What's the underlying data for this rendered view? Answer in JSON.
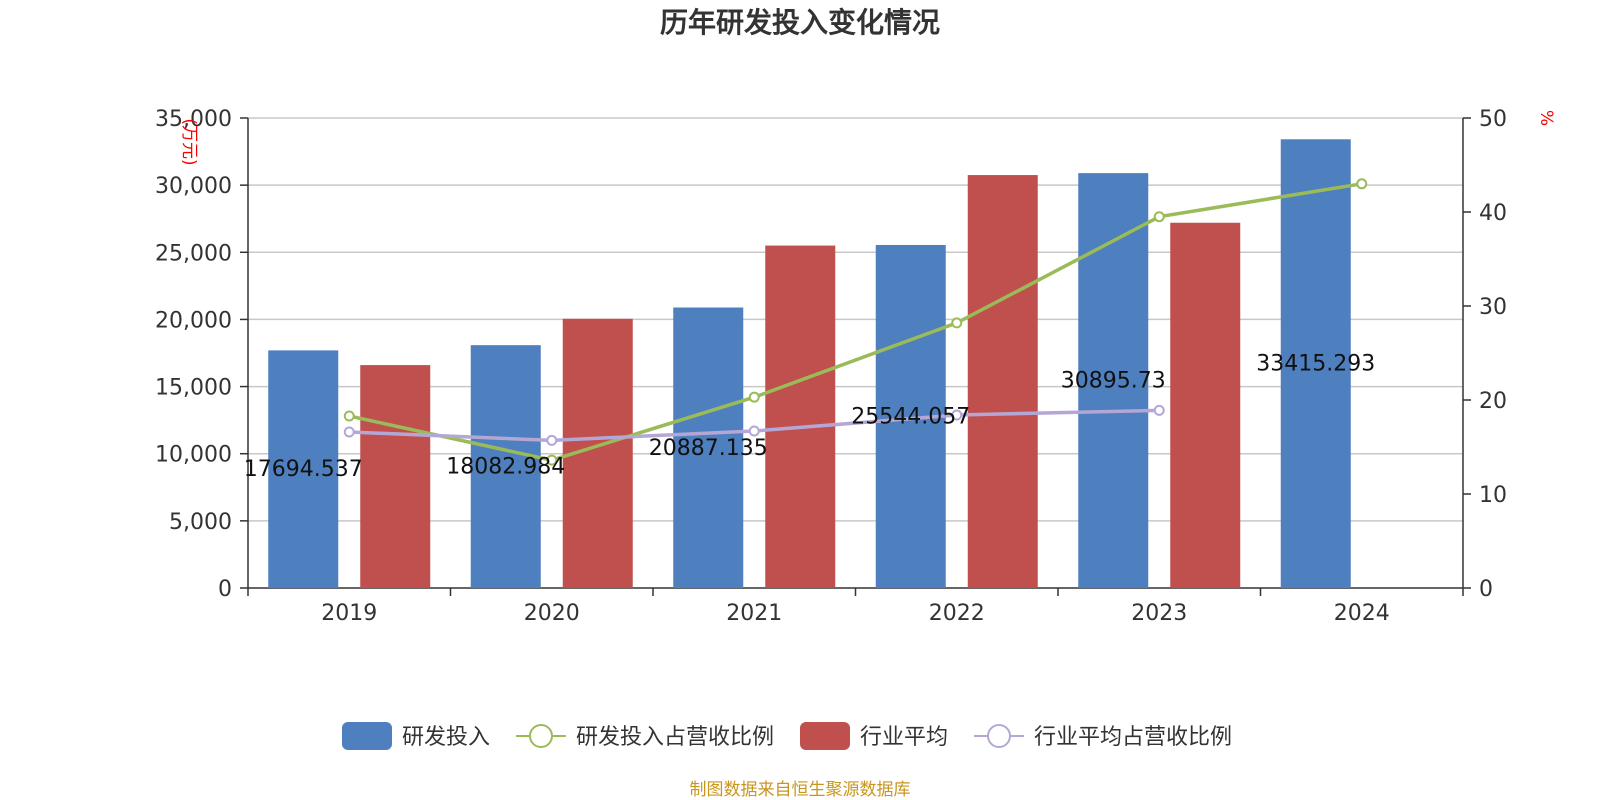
{
  "chart_data": {
    "type": "bar",
    "title": "历年研发投入变化情况",
    "categories": [
      "2019",
      "2020",
      "2021",
      "2022",
      "2023",
      "2024"
    ],
    "y_left": {
      "unit": "(万元)",
      "range": [
        0,
        35000
      ],
      "ticks": [
        "0",
        "5,000",
        "10,000",
        "15,000",
        "20,000",
        "25,000",
        "30,000",
        "35,000"
      ]
    },
    "y_right": {
      "unit": "%",
      "range": [
        0,
        50
      ],
      "ticks": [
        "0",
        "10",
        "20",
        "30",
        "40",
        "50"
      ]
    },
    "grid": true,
    "legend_position": "bottom",
    "series": [
      {
        "name": "研发投入",
        "kind": "bar",
        "axis": "left",
        "color": "#4e7fbe",
        "values": [
          17694.537,
          18082.984,
          20887.135,
          25544.057,
          30895.73,
          33415.293
        ],
        "labels": [
          "17694.537",
          "18082.984",
          "20887.135",
          "25544.057",
          "30895.73",
          "33415.293"
        ]
      },
      {
        "name": "研发投入占营收比例",
        "kind": "line",
        "axis": "right",
        "color": "#9bbb59",
        "values": [
          18.3,
          13.6,
          20.3,
          28.2,
          39.5,
          43.0
        ]
      },
      {
        "name": "行业平均",
        "kind": "bar",
        "axis": "left",
        "color": "#c0504d",
        "values": [
          16600,
          20050,
          25500,
          30750,
          27200,
          null
        ]
      },
      {
        "name": "行业平均占营收比例",
        "kind": "line",
        "axis": "right",
        "color": "#b4a7d6",
        "values": [
          16.6,
          15.7,
          16.7,
          18.4,
          18.9,
          null
        ]
      }
    ]
  },
  "footer": {
    "source": "制图数据来自恒生聚源数据库"
  }
}
